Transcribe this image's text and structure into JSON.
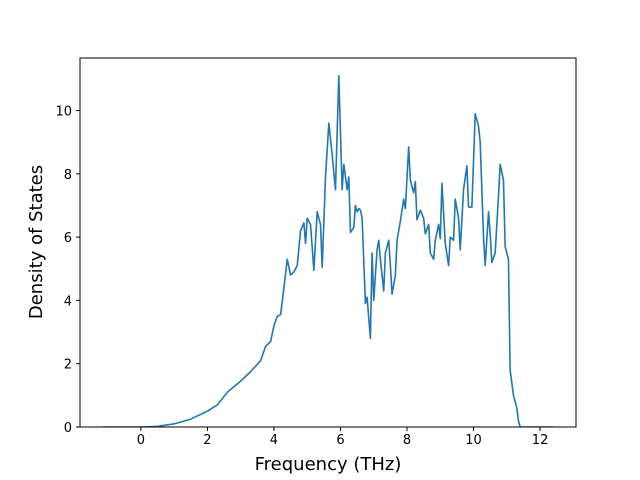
{
  "chart_data": {
    "type": "line",
    "x_label": "Frequency (THz)",
    "y_label": "Density of States",
    "x": [
      -1.15,
      0,
      0.5,
      1.0,
      1.5,
      2.0,
      2.3,
      2.6,
      3.0,
      3.3,
      3.6,
      3.75,
      3.9,
      4.0,
      4.1,
      4.2,
      4.3,
      4.4,
      4.5,
      4.6,
      4.7,
      4.8,
      4.9,
      4.95,
      5.0,
      5.1,
      5.2,
      5.3,
      5.4,
      5.45,
      5.55,
      5.65,
      5.75,
      5.85,
      5.95,
      6.05,
      6.1,
      6.2,
      6.25,
      6.3,
      6.4,
      6.45,
      6.5,
      6.55,
      6.6,
      6.65,
      6.75,
      6.8,
      6.9,
      6.95,
      7.0,
      7.1,
      7.15,
      7.2,
      7.3,
      7.35,
      7.45,
      7.5,
      7.55,
      7.65,
      7.7,
      7.8,
      7.9,
      7.95,
      8.05,
      8.1,
      8.2,
      8.25,
      8.3,
      8.4,
      8.5,
      8.55,
      8.65,
      8.7,
      8.8,
      8.85,
      8.95,
      9.0,
      9.05,
      9.15,
      9.25,
      9.3,
      9.4,
      9.45,
      9.55,
      9.6,
      9.7,
      9.8,
      9.85,
      9.95,
      10.05,
      10.15,
      10.2,
      10.3,
      10.35,
      10.45,
      10.5,
      10.55,
      10.65,
      10.75,
      10.8,
      10.9,
      10.95,
      11.05,
      11.1,
      11.2,
      11.3,
      11.35,
      11.4,
      12.4
    ],
    "series": [
      {
        "color": "#1f77b4",
        "values": [
          0,
          0,
          0.02,
          0.1,
          0.25,
          0.5,
          0.7,
          1.1,
          1.45,
          1.75,
          2.1,
          2.55,
          2.7,
          3.2,
          3.5,
          3.55,
          4.4,
          5.3,
          4.8,
          4.9,
          5.1,
          6.2,
          6.45,
          5.8,
          6.6,
          6.4,
          4.95,
          6.8,
          6.4,
          5.05,
          7.9,
          9.6,
          8.6,
          7.5,
          11.1,
          7.5,
          8.3,
          7.5,
          7.9,
          6.15,
          6.3,
          7.0,
          6.8,
          6.9,
          6.85,
          6.6,
          3.9,
          4.1,
          2.8,
          5.5,
          4.0,
          5.6,
          5.9,
          5.3,
          4.3,
          5.5,
          5.9,
          5.1,
          4.2,
          4.8,
          5.9,
          6.5,
          7.2,
          6.9,
          8.85,
          7.8,
          7.4,
          7.75,
          6.55,
          6.85,
          6.6,
          6.1,
          6.4,
          5.5,
          5.3,
          5.9,
          6.4,
          5.95,
          7.7,
          5.8,
          5.1,
          6.0,
          5.9,
          7.2,
          6.6,
          5.6,
          7.5,
          8.25,
          6.95,
          6.95,
          9.9,
          9.5,
          9.0,
          6.0,
          5.1,
          6.8,
          6.1,
          5.2,
          5.5,
          7.3,
          8.3,
          7.8,
          5.7,
          5.3,
          1.8,
          1.0,
          0.6,
          0.2,
          0,
          0
        ]
      }
    ],
    "xlim": [
      -1.83,
      13.08
    ],
    "xticks": [
      0,
      2,
      4,
      6,
      8,
      10,
      12
    ],
    "ylim": [
      0,
      11.66
    ],
    "yticks": [
      0,
      2,
      4,
      6,
      8,
      10
    ]
  }
}
